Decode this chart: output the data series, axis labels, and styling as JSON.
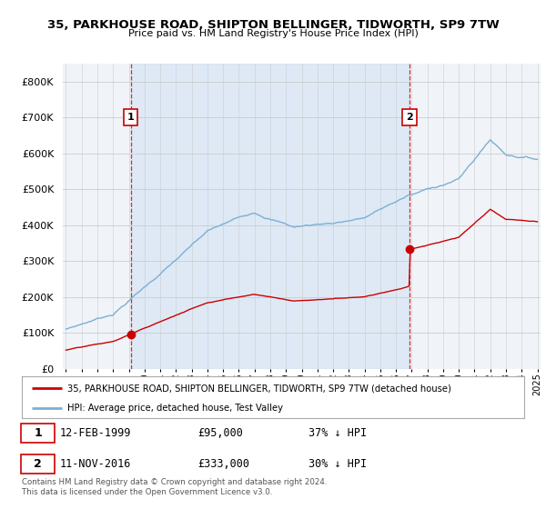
{
  "title": "35, PARKHOUSE ROAD, SHIPTON BELLINGER, TIDWORTH, SP9 7TW",
  "subtitle": "Price paid vs. HM Land Registry's House Price Index (HPI)",
  "legend_line1": "35, PARKHOUSE ROAD, SHIPTON BELLINGER, TIDWORTH, SP9 7TW (detached house)",
  "legend_line2": "HPI: Average price, detached house, Test Valley",
  "annotation1_label": "1",
  "annotation1_date": "12-FEB-1999",
  "annotation1_price": "£95,000",
  "annotation1_pct": "37% ↓ HPI",
  "annotation2_label": "2",
  "annotation2_date": "11-NOV-2016",
  "annotation2_price": "£333,000",
  "annotation2_pct": "30% ↓ HPI",
  "footer": "Contains HM Land Registry data © Crown copyright and database right 2024.\nThis data is licensed under the Open Government Licence v3.0.",
  "sale1_year": 1999.12,
  "sale1_price": 95000,
  "sale2_year": 2016.87,
  "sale2_price": 333000,
  "red_color": "#cc0000",
  "blue_color": "#7bafd4",
  "shade_color": "#ddeeff",
  "background_color": "#f0f4f8",
  "ylim": [
    0,
    850000
  ],
  "xlim": [
    1994.8,
    2025.2
  ]
}
